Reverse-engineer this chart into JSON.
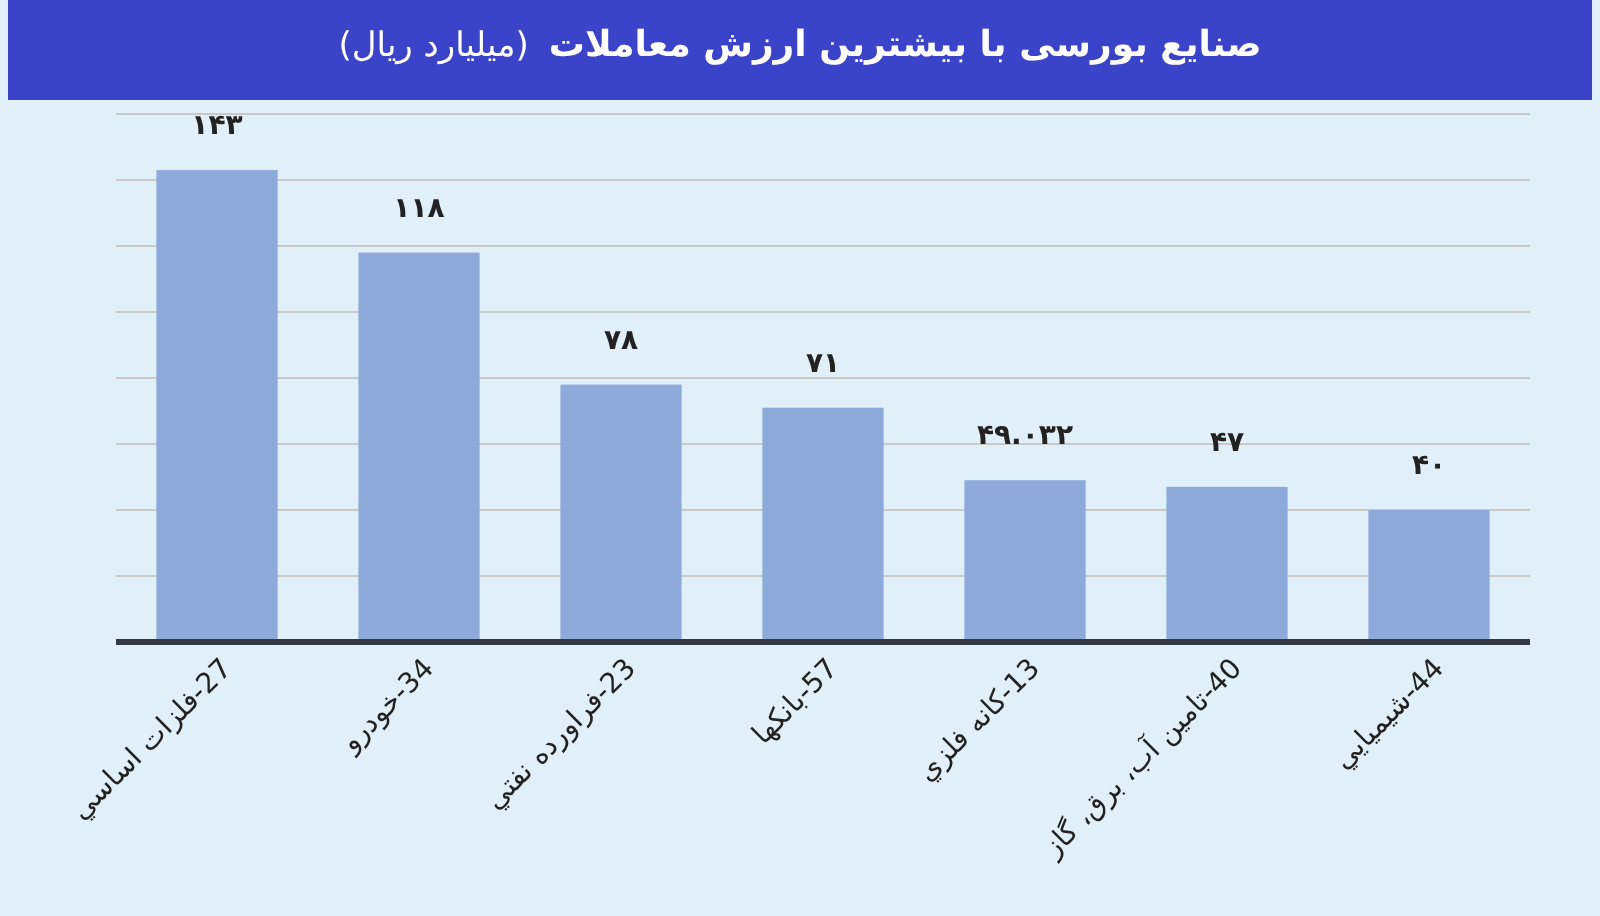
{
  "chart_data": {
    "type": "bar",
    "title": "صنایع بورسی با بیشترین ارزش معاملات",
    "subtitle": "(میلیارد ریال)",
    "categories": [
      "27-فلزات اساسي",
      "34-خودرو",
      "23-فراورده نفتي",
      "57-بانکها",
      "13-کانه فلزي",
      "40-تامين آب، برق، گاز",
      "44-شيميايي"
    ],
    "values": [
      143,
      118,
      78,
      71,
      49.032,
      47,
      40
    ],
    "value_labels": [
      "۱۴۳",
      "۱۱۸",
      "۷۸",
      "۷۱",
      "۴۹.۰۳۲",
      "۴۷",
      "۴۰"
    ],
    "color": "#8eaadb",
    "ylim": [
      0,
      160
    ],
    "yticks": [
      {
        "value": 0,
        "label": null
      },
      {
        "value": 20,
        "label": null
      },
      {
        "value": 40,
        "label": null
      },
      {
        "value": 60,
        "label": null
      },
      {
        "value": 80,
        "label": null
      },
      {
        "value": 100,
        "label": null
      },
      {
        "value": 120,
        "label": null
      },
      {
        "value": 140,
        "label": null
      },
      {
        "value": 160,
        "label": null
      }
    ],
    "grid": "y",
    "tick_labels": "x"
  }
}
